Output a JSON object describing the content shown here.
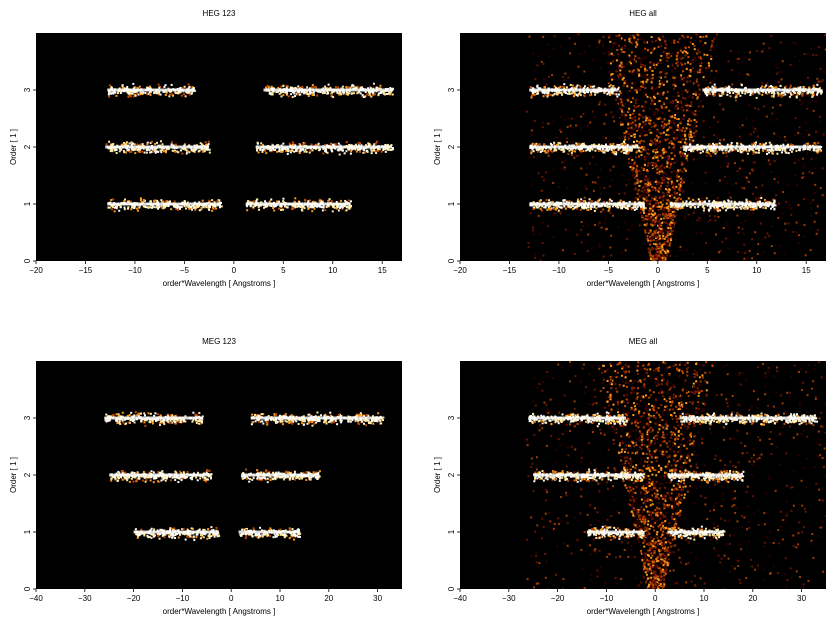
{
  "figure": {
    "background": "#ffffff",
    "plot_background": "#000000",
    "colormap": [
      "#3a0000",
      "#7a1a00",
      "#c24a00",
      "#ff9a1a",
      "#ffe8a0",
      "#ffffff"
    ]
  },
  "chart_data": [
    {
      "type": "heatmap",
      "title": "HEG 123",
      "xlabel": "order*Wavelength [ Angstroms ]",
      "ylabel": "Order [ 1 ]",
      "xlim": [
        -20,
        17
      ],
      "ylim": [
        0,
        4
      ],
      "xticks": [
        -20,
        -15,
        -10,
        -5,
        0,
        5,
        10,
        15
      ],
      "yticks": [
        0,
        1,
        2,
        3
      ],
      "show_orders": [
        1,
        2,
        3
      ],
      "wedge": false,
      "bands": [
        {
          "order": 1,
          "segments": [
            [
              -12.8,
              -1.3
            ],
            [
              1.2,
              11.8
            ]
          ]
        },
        {
          "order": 2,
          "segments": [
            [
              -13.0,
              -2.5
            ],
            [
              2.2,
              16.0
            ]
          ]
        },
        {
          "order": 3,
          "segments": [
            [
              -12.8,
              -4.0
            ],
            [
              3.0,
              16.0
            ]
          ]
        }
      ]
    },
    {
      "type": "heatmap",
      "title": "HEG all",
      "xlabel": "order*Wavelength [ Angstroms ]",
      "ylabel": "Order [ 1 ]",
      "xlim": [
        -20,
        17
      ],
      "ylim": [
        0,
        4
      ],
      "xticks": [
        -20,
        -15,
        -10,
        -5,
        0,
        5,
        10,
        15
      ],
      "yticks": [
        0,
        1,
        2,
        3
      ],
      "show_orders": [
        1,
        2,
        3
      ],
      "wedge": true,
      "bands": [
        {
          "order": 1,
          "segments": [
            [
              -13.0,
              -1.3
            ],
            [
              1.2,
              11.8
            ]
          ]
        },
        {
          "order": 2,
          "segments": [
            [
              -13.0,
              -2.0
            ],
            [
              2.5,
              16.5
            ]
          ]
        },
        {
          "order": 3,
          "segments": [
            [
              -13.0,
              -4.0
            ],
            [
              4.5,
              16.5
            ]
          ]
        }
      ]
    },
    {
      "type": "heatmap",
      "title": "MEG 123",
      "xlabel": "order*Wavelength [ Angstroms ]",
      "ylabel": "Order [ 1 ]",
      "xlim": [
        -40,
        35
      ],
      "ylim": [
        0,
        4
      ],
      "xticks": [
        -40,
        -30,
        -20,
        -10,
        0,
        10,
        20,
        30
      ],
      "yticks": [
        0,
        1,
        2,
        3
      ],
      "show_orders": [
        1,
        2,
        3
      ],
      "wedge": false,
      "bands": [
        {
          "order": 1,
          "segments": [
            [
              -20.0,
              -2.5
            ],
            [
              1.5,
              14.0
            ]
          ]
        },
        {
          "order": 2,
          "segments": [
            [
              -25.0,
              -4.0
            ],
            [
              2.0,
              18.0
            ]
          ]
        },
        {
          "order": 3,
          "segments": [
            [
              -26.0,
              -6.0
            ],
            [
              4.0,
              31.0
            ]
          ]
        }
      ]
    },
    {
      "type": "heatmap",
      "title": "MEG all",
      "xlabel": "order*Wavelength [ Angstroms ]",
      "ylabel": "Order [ 1 ]",
      "xlim": [
        -40,
        35
      ],
      "ylim": [
        0,
        4
      ],
      "xticks": [
        -40,
        -30,
        -20,
        -10,
        0,
        10,
        20,
        30
      ],
      "yticks": [
        0,
        1,
        2,
        3
      ],
      "show_orders": [
        1,
        2,
        3
      ],
      "wedge": true,
      "bands": [
        {
          "order": 1,
          "segments": [
            [
              -14.0,
              -2.5
            ],
            [
              2.5,
              14.0
            ]
          ]
        },
        {
          "order": 2,
          "segments": [
            [
              -25.0,
              -2.5
            ],
            [
              2.5,
              18.0
            ]
          ]
        },
        {
          "order": 3,
          "segments": [
            [
              -26.0,
              -6.0
            ],
            [
              5.0,
              33.0
            ]
          ]
        }
      ]
    }
  ]
}
